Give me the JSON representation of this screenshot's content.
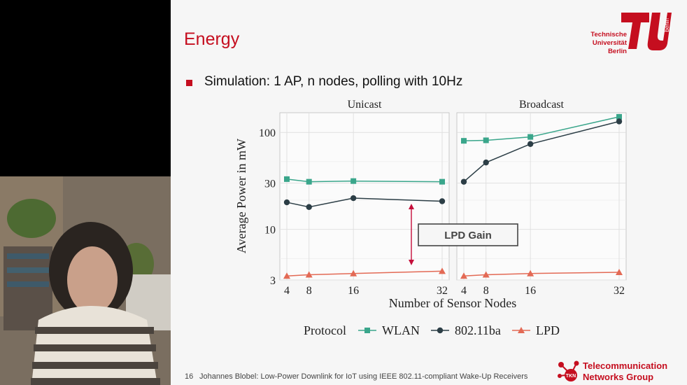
{
  "slide": {
    "title": "Energy",
    "bullet": "Simulation: 1 AP, n nodes, polling with 10Hz",
    "university": [
      "Technische",
      "Universität",
      "Berlin"
    ],
    "page_number": "16",
    "footer": "Johannes Blobel: Low-Power Downlink for IoT using IEEE 802.11-compliant Wake-Up Receivers",
    "group": [
      "Telecommunication",
      "Networks Group"
    ],
    "group_badge": "TKN",
    "logo_side_text": "berlin"
  },
  "chart_data": {
    "type": "line",
    "facets": [
      "Unicast",
      "Broadcast"
    ],
    "x": [
      4,
      8,
      16,
      32
    ],
    "xlabel": "Number of Sensor Nodes",
    "ylabel": "Average Power in mW",
    "y_scale": "log",
    "ylim": [
      3,
      160
    ],
    "y_ticks": [
      3,
      10,
      30,
      100
    ],
    "x_ticks": [
      4,
      8,
      16,
      32
    ],
    "grid": true,
    "legend_title": "Protocol",
    "legend_position": "bottom",
    "series": [
      {
        "name": "WLAN",
        "color": "#3aa68b",
        "marker": "square",
        "values": {
          "Unicast": [
            33,
            31,
            31.5,
            31
          ],
          "Broadcast": [
            82,
            83,
            90,
            145
          ]
        }
      },
      {
        "name": "802.11ba",
        "color": "#2c3e46",
        "marker": "circle",
        "values": {
          "Unicast": [
            19,
            17,
            21,
            19.5
          ],
          "Broadcast": [
            31,
            49,
            76,
            130
          ]
        }
      },
      {
        "name": "LPD",
        "color": "#e36a55",
        "marker": "triangle",
        "values": {
          "Unicast": [
            3.3,
            3.4,
            3.5,
            3.7
          ],
          "Broadcast": [
            3.3,
            3.4,
            3.5,
            3.6
          ]
        }
      }
    ],
    "annotation": "LPD Gain"
  }
}
